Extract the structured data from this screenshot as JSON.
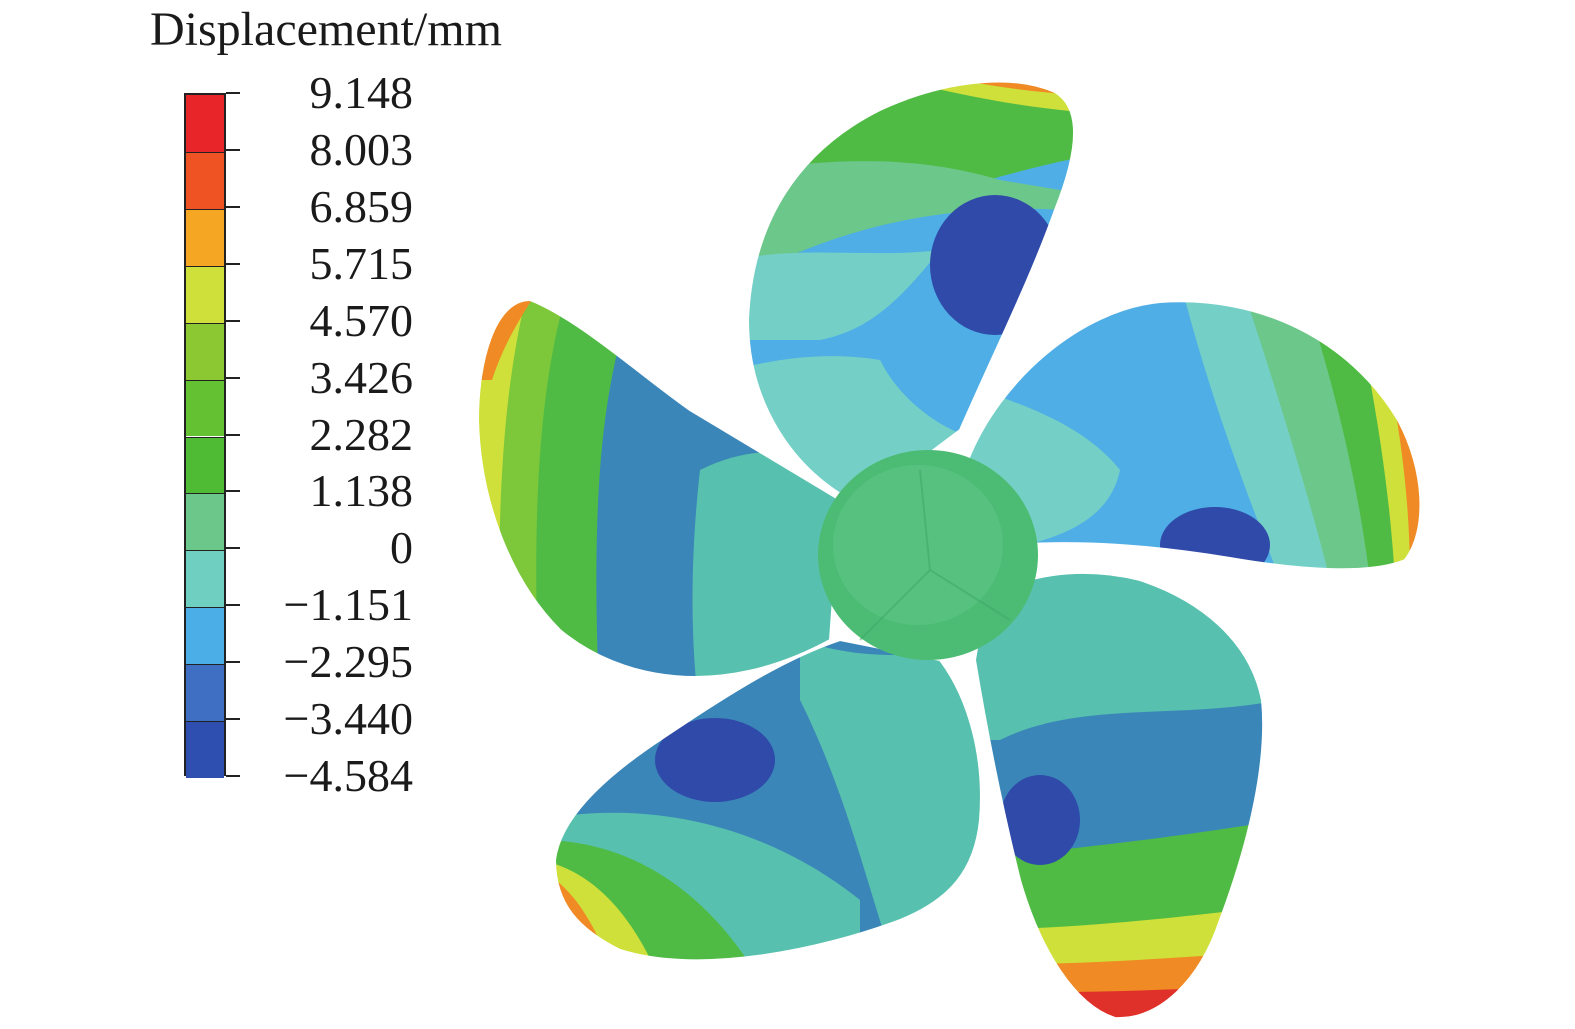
{
  "legend": {
    "title": "Displacement/mm",
    "ticks": [
      "9.148",
      "8.003",
      "6.859",
      "5.715",
      "4.570",
      "3.426",
      "2.282",
      "1.138",
      "0",
      "−1.151",
      "−2.295",
      "−3.440",
      "−4.584"
    ],
    "colors": [
      "#e8262a",
      "#ef5324",
      "#f5a623",
      "#cfe03a",
      "#8cc832",
      "#63c132",
      "#4fbb34",
      "#6cc78a",
      "#6fcfc0",
      "#4baee6",
      "#3f6fc2",
      "#2f4fb0"
    ]
  },
  "palette": {
    "deep_blue": "#2f4aa8",
    "steel_blue": "#3a86b8",
    "light_blue": "#4faee6",
    "teal": "#58c0ae",
    "light_teal": "#74d0c6",
    "green": "#4fbb44",
    "light_green": "#7cc83a",
    "yellow": "#cfe03a",
    "orange": "#ef8a24",
    "red": "#e0302a",
    "hub": "#4cbc74"
  }
}
